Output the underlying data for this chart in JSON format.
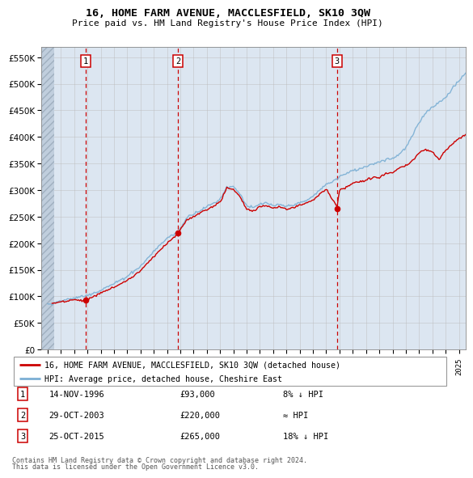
{
  "title": "16, HOME FARM AVENUE, MACCLESFIELD, SK10 3QW",
  "subtitle": "Price paid vs. HM Land Registry's House Price Index (HPI)",
  "legend_entry1": "16, HOME FARM AVENUE, MACCLESFIELD, SK10 3QW (detached house)",
  "legend_entry2": "HPI: Average price, detached house, Cheshire East",
  "footnote1": "Contains HM Land Registry data © Crown copyright and database right 2024.",
  "footnote2": "This data is licensed under the Open Government Licence v3.0.",
  "sale_year_floats": [
    1996.878,
    2003.829,
    2015.812
  ],
  "sale_prices": [
    93000,
    220000,
    265000
  ],
  "sale_labels": [
    "1",
    "2",
    "3"
  ],
  "sale_notes": [
    "14-NOV-1996",
    "29-OCT-2003",
    "25-OCT-2015"
  ],
  "sale_amounts": [
    "£93,000",
    "£220,000",
    "£265,000"
  ],
  "sale_hpi": [
    "8% ↓ HPI",
    "≈ HPI",
    "18% ↓ HPI"
  ],
  "price_line_color": "#cc0000",
  "hpi_line_color": "#7bafd4",
  "sale_marker_color": "#cc0000",
  "dashed_line_color": "#cc0000",
  "ylim": [
    0,
    570000
  ],
  "yticks": [
    0,
    50000,
    100000,
    150000,
    200000,
    250000,
    300000,
    350000,
    400000,
    450000,
    500000,
    550000
  ],
  "xlim_start": 1993.5,
  "xlim_end": 2025.5,
  "bg_color": "#dce6f1",
  "hatch_color": "#c0cedd",
  "grid_color": "#bbbbbb",
  "box_color": "#cc0000",
  "legend_border_color": "#999999",
  "hpi_start_year": 1994.0,
  "price_start_year": 1994.25
}
